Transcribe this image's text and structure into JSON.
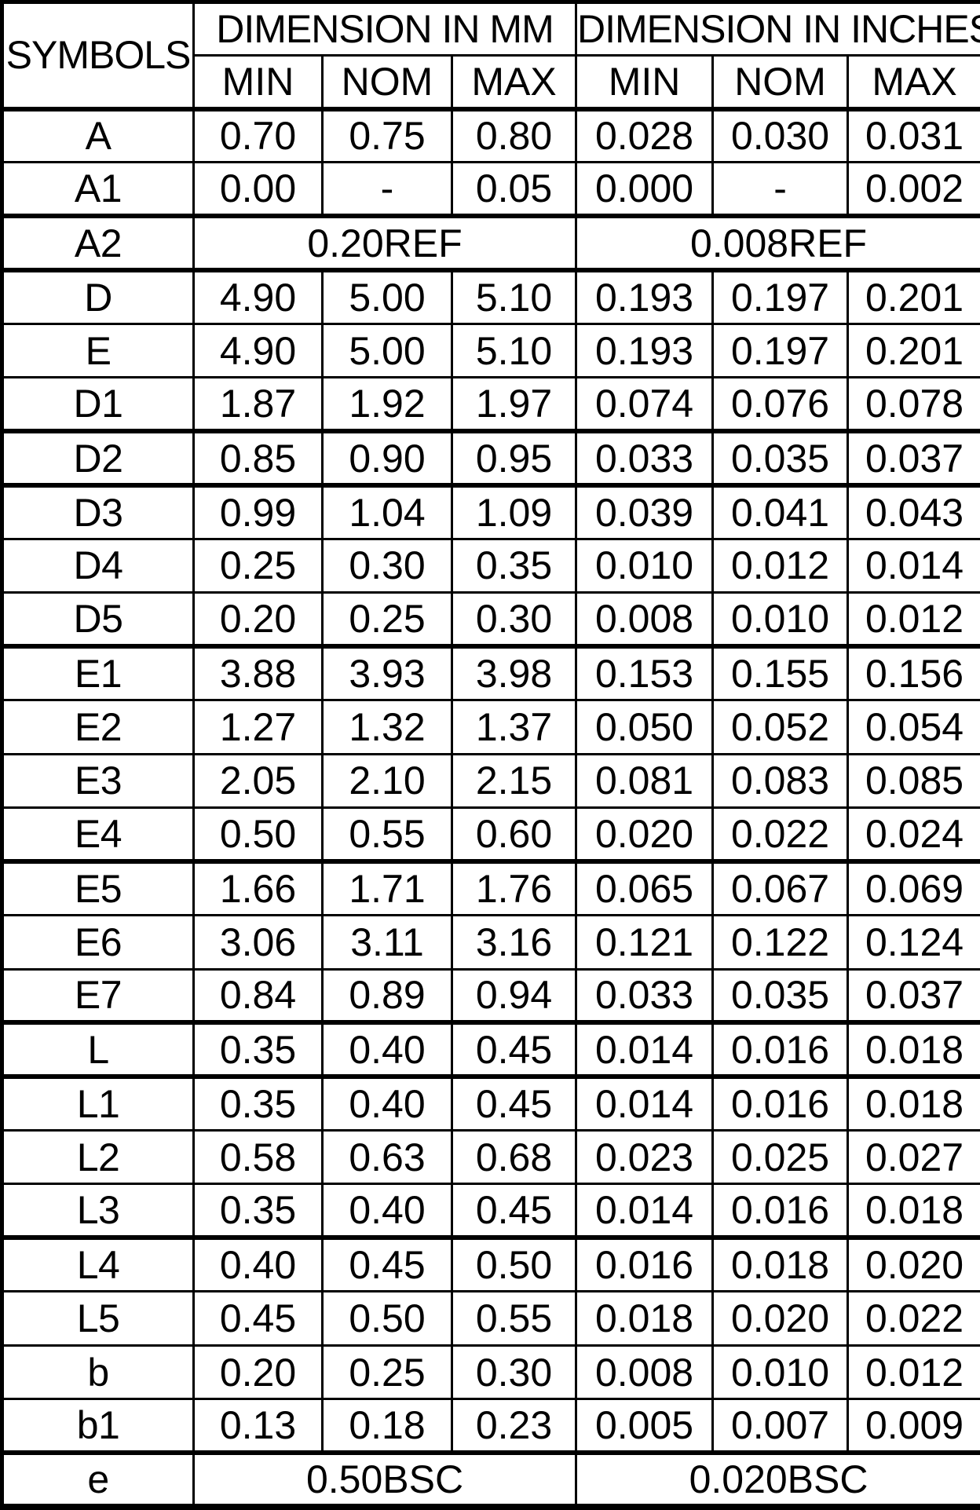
{
  "colors": {
    "background": "#ffffff",
    "border": "#000000",
    "text": "#000000"
  },
  "table": {
    "header": {
      "symbols_label": "SYMBOLS",
      "mm_group_label": "DIMENSION IN MM",
      "inches_group_label": "DIMENSION IN INCHES",
      "sub_columns": [
        "MIN",
        "NOM",
        "MAX",
        "MIN",
        "NOM",
        "MAX"
      ]
    },
    "rows": [
      {
        "symbol": "A",
        "mm": [
          "0.70",
          "0.75",
          "0.80"
        ],
        "inches": [
          "0.028",
          "0.030",
          "0.031"
        ],
        "group_start": true
      },
      {
        "symbol": "A1",
        "mm": [
          "0.00",
          "-",
          "0.05"
        ],
        "inches": [
          "0.000",
          "-",
          "0.002"
        ],
        "group_start": false
      },
      {
        "symbol": "A2",
        "mm_span": "0.20REF",
        "inches_span": "0.008REF",
        "group_start": true
      },
      {
        "symbol": "D",
        "mm": [
          "4.90",
          "5.00",
          "5.10"
        ],
        "inches": [
          "0.193",
          "0.197",
          "0.201"
        ],
        "group_start": true
      },
      {
        "symbol": "E",
        "mm": [
          "4.90",
          "5.00",
          "5.10"
        ],
        "inches": [
          "0.193",
          "0.197",
          "0.201"
        ],
        "group_start": false
      },
      {
        "symbol": "D1",
        "mm": [
          "1.87",
          "1.92",
          "1.97"
        ],
        "inches": [
          "0.074",
          "0.076",
          "0.078"
        ],
        "group_start": false
      },
      {
        "symbol": "D2",
        "mm": [
          "0.85",
          "0.90",
          "0.95"
        ],
        "inches": [
          "0.033",
          "0.035",
          "0.037"
        ],
        "group_start": true
      },
      {
        "symbol": "D3",
        "mm": [
          "0.99",
          "1.04",
          "1.09"
        ],
        "inches": [
          "0.039",
          "0.041",
          "0.043"
        ],
        "group_start": true
      },
      {
        "symbol": "D4",
        "mm": [
          "0.25",
          "0.30",
          "0.35"
        ],
        "inches": [
          "0.010",
          "0.012",
          "0.014"
        ],
        "group_start": false
      },
      {
        "symbol": "D5",
        "mm": [
          "0.20",
          "0.25",
          "0.30"
        ],
        "inches": [
          "0.008",
          "0.010",
          "0.012"
        ],
        "group_start": false
      },
      {
        "symbol": "E1",
        "mm": [
          "3.88",
          "3.93",
          "3.98"
        ],
        "inches": [
          "0.153",
          "0.155",
          "0.156"
        ],
        "group_start": true
      },
      {
        "symbol": "E2",
        "mm": [
          "1.27",
          "1.32",
          "1.37"
        ],
        "inches": [
          "0.050",
          "0.052",
          "0.054"
        ],
        "group_start": false
      },
      {
        "symbol": "E3",
        "mm": [
          "2.05",
          "2.10",
          "2.15"
        ],
        "inches": [
          "0.081",
          "0.083",
          "0.085"
        ],
        "group_start": false
      },
      {
        "symbol": "E4",
        "mm": [
          "0.50",
          "0.55",
          "0.60"
        ],
        "inches": [
          "0.020",
          "0.022",
          "0.024"
        ],
        "group_start": false
      },
      {
        "symbol": "E5",
        "mm": [
          "1.66",
          "1.71",
          "1.76"
        ],
        "inches": [
          "0.065",
          "0.067",
          "0.069"
        ],
        "group_start": true
      },
      {
        "symbol": "E6",
        "mm": [
          "3.06",
          "3.11",
          "3.16"
        ],
        "inches": [
          "0.121",
          "0.122",
          "0.124"
        ],
        "group_start": false
      },
      {
        "symbol": "E7",
        "mm": [
          "0.84",
          "0.89",
          "0.94"
        ],
        "inches": [
          "0.033",
          "0.035",
          "0.037"
        ],
        "group_start": false
      },
      {
        "symbol": "L",
        "mm": [
          "0.35",
          "0.40",
          "0.45"
        ],
        "inches": [
          "0.014",
          "0.016",
          "0.018"
        ],
        "group_start": true
      },
      {
        "symbol": "L1",
        "mm": [
          "0.35",
          "0.40",
          "0.45"
        ],
        "inches": [
          "0.014",
          "0.016",
          "0.018"
        ],
        "group_start": true
      },
      {
        "symbol": "L2",
        "mm": [
          "0.58",
          "0.63",
          "0.68"
        ],
        "inches": [
          "0.023",
          "0.025",
          "0.027"
        ],
        "group_start": false
      },
      {
        "symbol": "L3",
        "mm": [
          "0.35",
          "0.40",
          "0.45"
        ],
        "inches": [
          "0.014",
          "0.016",
          "0.018"
        ],
        "group_start": false
      },
      {
        "symbol": "L4",
        "mm": [
          "0.40",
          "0.45",
          "0.50"
        ],
        "inches": [
          "0.016",
          "0.018",
          "0.020"
        ],
        "group_start": true
      },
      {
        "symbol": "L5",
        "mm": [
          "0.45",
          "0.50",
          "0.55"
        ],
        "inches": [
          "0.018",
          "0.020",
          "0.022"
        ],
        "group_start": false
      },
      {
        "symbol": "b",
        "mm": [
          "0.20",
          "0.25",
          "0.30"
        ],
        "inches": [
          "0.008",
          "0.010",
          "0.012"
        ],
        "group_start": false
      },
      {
        "symbol": "b1",
        "mm": [
          "0.13",
          "0.18",
          "0.23"
        ],
        "inches": [
          "0.005",
          "0.007",
          "0.009"
        ],
        "group_start": false
      },
      {
        "symbol": "e",
        "mm_span": "0.50BSC",
        "inches_span": "0.020BSC",
        "group_start": true
      }
    ]
  }
}
